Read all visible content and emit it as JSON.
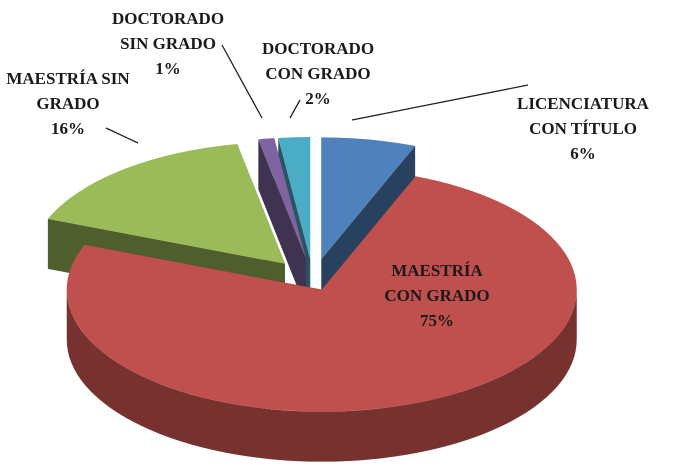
{
  "chart_data": {
    "type": "pie",
    "categories": [
      "LICENCIATURA CON TÍTULO",
      "MAESTRÍA CON GRADO",
      "MAESTRÍA SIN GRADO",
      "DOCTORADO SIN GRADO",
      "DOCTORADO CON GRADO"
    ],
    "values": [
      6,
      75,
      16,
      1,
      2
    ],
    "value_labels": [
      "6%",
      "75%",
      "16%",
      "1%",
      "2%"
    ],
    "colors": [
      "#4f81bd",
      "#c0504d",
      "#9bbb59",
      "#8064a2",
      "#4bacc6"
    ]
  }
}
